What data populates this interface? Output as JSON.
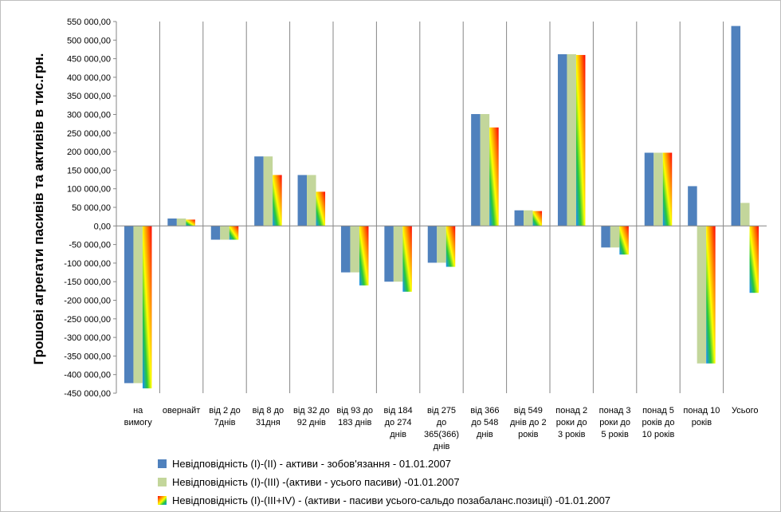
{
  "colors": {
    "series1": "#4f81bd",
    "series2": "#c3d69b",
    "gridline": "#868686",
    "gradient_stops": [
      "#ff0000",
      "#ff8a00",
      "#ffff00",
      "#26c83c",
      "#1a8cff"
    ]
  },
  "chart_data": {
    "type": "bar",
    "ylabel": "Грошові агрегати  пасивів та активів  в тис.грн.",
    "ylim": [
      -450000,
      550000
    ],
    "ytick_step": 50000,
    "ytick_labels": [
      "550 000,00",
      "500 000,00",
      "450 000,00",
      "400 000,00",
      "350 000,00",
      "300 000,00",
      "250 000,00",
      "200 000,00",
      "150 000,00",
      "100 000,00",
      "50 000,00",
      "0,00",
      "-50 000,00",
      "-100 000,00",
      "-150 000,00",
      "-200 000,00",
      "-250 000,00",
      "-300 000,00",
      "-350 000,00",
      "-400 000,00",
      "-450 000,00"
    ],
    "grid": "vertical category separators",
    "legend_position": "bottom",
    "categories": [
      [
        "на",
        "вимогу"
      ],
      [
        "овернайт"
      ],
      [
        "від 2 до",
        "7днів"
      ],
      [
        "від 8 до",
        "31дня"
      ],
      [
        "від 32 до",
        "92 днів"
      ],
      [
        "від 93 до",
        "183 днів"
      ],
      [
        "від 184",
        "до 274",
        "днів"
      ],
      [
        "від 275",
        "до",
        "365(366)",
        "днів"
      ],
      [
        "від 366",
        "до 548",
        "днів"
      ],
      [
        "від 549",
        "днів до 2",
        "років"
      ],
      [
        "понад 2",
        "роки до",
        "3 років"
      ],
      [
        "понад 3",
        "роки до",
        "5 років"
      ],
      [
        "понад 5",
        "років до",
        "10 років"
      ],
      [
        "понад 10",
        "років"
      ],
      [
        "Усього"
      ]
    ],
    "series": [
      {
        "name": "Невідповідність (І)-(ІІ) - активи - зобов'язання - 01.01.2007",
        "values": [
          -423000,
          20000,
          -37000,
          187000,
          137000,
          -125000,
          -150000,
          -99000,
          301000,
          42000,
          462000,
          -58000,
          197000,
          107000,
          538000
        ]
      },
      {
        "name": "Невідповідність (І)-(ІІІ) -(активи - усього пасиви) -01.01.2007",
        "values": [
          -423000,
          20000,
          -37000,
          187000,
          137000,
          -125000,
          -150000,
          -99000,
          301000,
          42000,
          462000,
          -58000,
          197000,
          -370000,
          62000
        ]
      },
      {
        "name": "Невідповідність (І)-(ІІІ+ІV) - (активи - пасиви усього-сальдо позабаланс.позиції) -01.01.2007",
        "values": [
          -437000,
          17000,
          -37000,
          137000,
          92000,
          -160000,
          -177000,
          -110000,
          265000,
          40000,
          460000,
          -77000,
          197000,
          -370000,
          -180000
        ]
      }
    ]
  }
}
